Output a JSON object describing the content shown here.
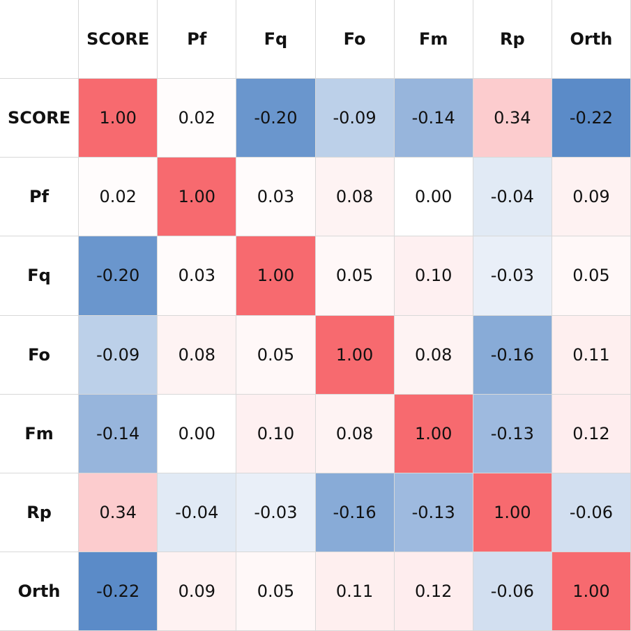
{
  "chart_data": {
    "type": "heatmap",
    "labels": [
      "SCORE",
      "Pf",
      "Fq",
      "Fo",
      "Fm",
      "Rp",
      "Orth"
    ],
    "values": [
      [
        1.0,
        0.02,
        -0.2,
        -0.09,
        -0.14,
        0.34,
        -0.22
      ],
      [
        0.02,
        1.0,
        0.03,
        0.08,
        0.0,
        -0.04,
        0.09
      ],
      [
        -0.2,
        0.03,
        1.0,
        0.05,
        0.1,
        -0.03,
        0.05
      ],
      [
        -0.09,
        0.08,
        0.05,
        1.0,
        0.08,
        -0.16,
        0.11
      ],
      [
        -0.14,
        0.0,
        0.1,
        0.08,
        1.0,
        -0.13,
        0.12
      ],
      [
        0.34,
        -0.04,
        -0.03,
        -0.16,
        -0.13,
        1.0,
        -0.06
      ],
      [
        -0.22,
        0.09,
        0.05,
        0.11,
        0.12,
        -0.06,
        1.0
      ]
    ],
    "value_format_decimals": 2,
    "color_scale": {
      "negative": "#5b8bc8",
      "neutral": "#ffffff",
      "positive": "#f76a6f",
      "negative_full_at": -0.22,
      "positive_full_at": 1.0
    }
  }
}
